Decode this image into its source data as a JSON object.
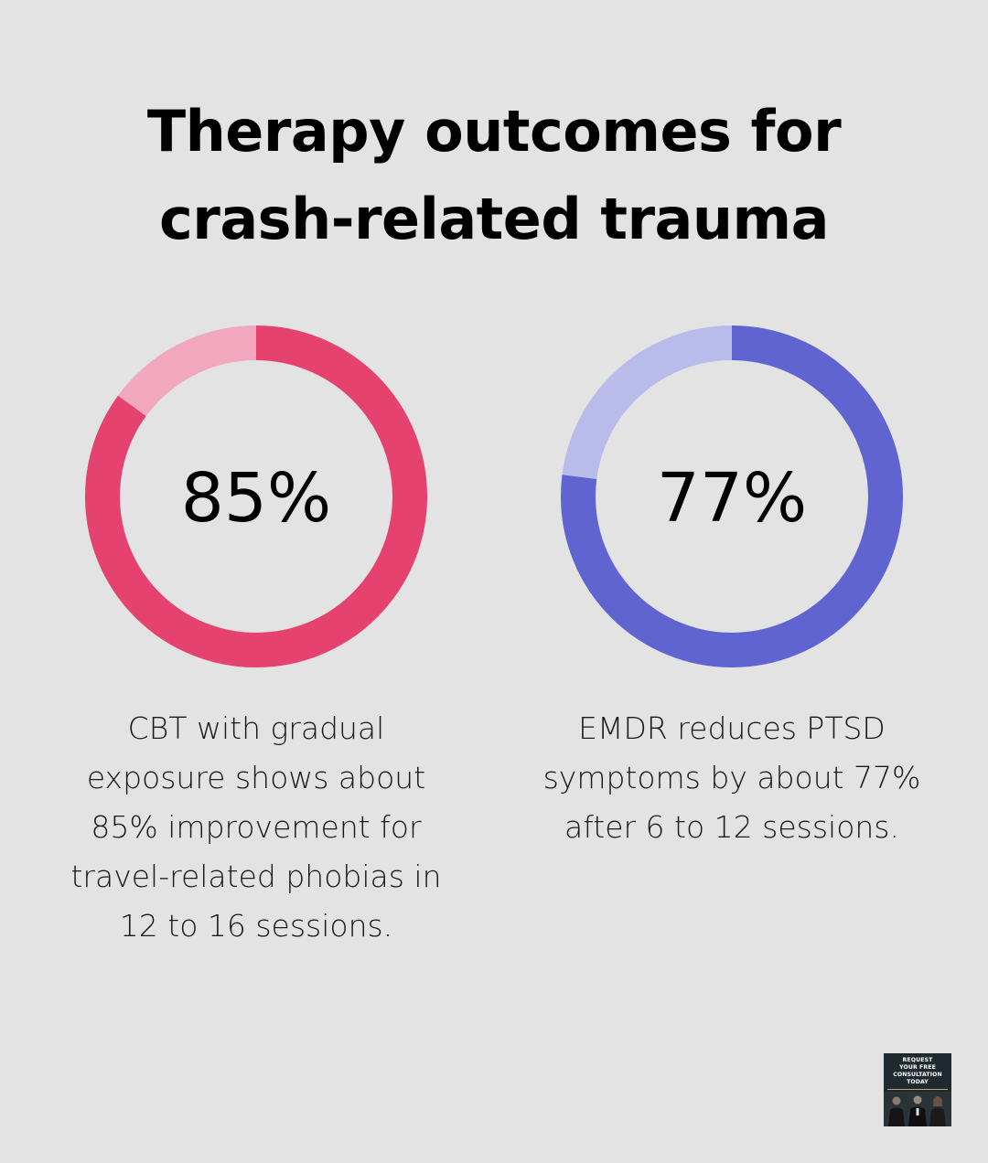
{
  "title_lines": [
    "Therapy outcomes for",
    "crash-related trauma"
  ],
  "chart_data": [
    {
      "type": "pie",
      "subtype": "donut",
      "value": 85,
      "label": "85%",
      "description": "CBT with gradual exposure shows about 85% improvement for travel-related phobias in 12 to 16 sessions.",
      "colors": {
        "filled": "#e6426f",
        "remainder": "#f1a8bf"
      }
    },
    {
      "type": "pie",
      "subtype": "donut",
      "value": 77,
      "label": "77%",
      "description": "EMDR reduces PTSD symptoms by about 77% after 6 to 12 sessions.",
      "colors": {
        "filled": "#6064d1",
        "remainder": "#b9bbea"
      }
    }
  ],
  "cbt_desc_lines": [
    "CBT with gradual",
    "exposure shows about",
    "85% improvement for",
    "travel-related phobias in",
    "12 to 16 sessions."
  ],
  "emdr_desc_lines": [
    "EMDR reduces PTSD",
    "symptoms by about 77%",
    "after 6 to 12 sessions."
  ],
  "badge": {
    "lines": [
      "REQUEST",
      "YOUR FREE",
      "CONSULTATION",
      "TODAY"
    ],
    "bg_color": "#1f2a30"
  }
}
